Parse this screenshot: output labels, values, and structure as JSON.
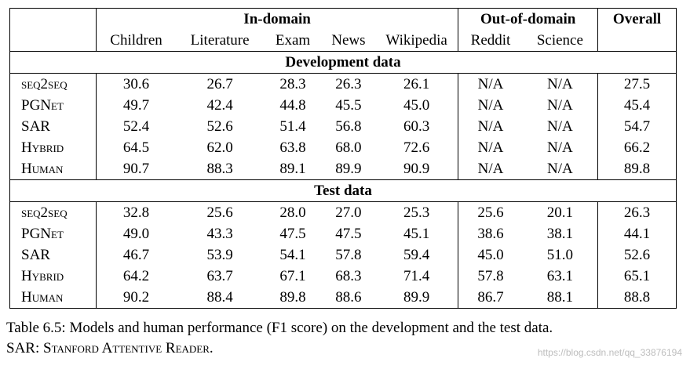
{
  "table": {
    "group_headers": {
      "in_domain": "In-domain",
      "out_of_domain": "Out-of-domain",
      "overall": "Overall"
    },
    "columns": [
      "Children",
      "Literature",
      "Exam",
      "News",
      "Wikipedia",
      "Reddit",
      "Science"
    ],
    "sections": [
      {
        "title": "Development data",
        "rows": [
          {
            "model": "seq2seq",
            "values": [
              "30.6",
              "26.7",
              "28.3",
              "26.3",
              "26.1",
              "N/A",
              "N/A",
              "27.5"
            ]
          },
          {
            "model": "PGNet",
            "values": [
              "49.7",
              "42.4",
              "44.8",
              "45.5",
              "45.0",
              "N/A",
              "N/A",
              "45.4"
            ]
          },
          {
            "model": "SAR",
            "values": [
              "52.4",
              "52.6",
              "51.4",
              "56.8",
              "60.3",
              "N/A",
              "N/A",
              "54.7"
            ]
          },
          {
            "model": "Hybrid",
            "values": [
              "64.5",
              "62.0",
              "63.8",
              "68.0",
              "72.6",
              "N/A",
              "N/A",
              "66.2"
            ]
          },
          {
            "model": "Human",
            "values": [
              "90.7",
              "88.3",
              "89.1",
              "89.9",
              "90.9",
              "N/A",
              "N/A",
              "89.8"
            ]
          }
        ]
      },
      {
        "title": "Test data",
        "rows": [
          {
            "model": "seq2seq",
            "values": [
              "32.8",
              "25.6",
              "28.0",
              "27.0",
              "25.3",
              "25.6",
              "20.1",
              "26.3"
            ]
          },
          {
            "model": "PGNet",
            "values": [
              "49.0",
              "43.3",
              "47.5",
              "47.5",
              "45.1",
              "38.6",
              "38.1",
              "44.1"
            ]
          },
          {
            "model": "SAR",
            "values": [
              "46.7",
              "53.9",
              "54.1",
              "57.8",
              "59.4",
              "45.0",
              "51.0",
              "52.6"
            ]
          },
          {
            "model": "Hybrid",
            "values": [
              "64.2",
              "63.7",
              "67.1",
              "68.3",
              "71.4",
              "57.8",
              "63.1",
              "65.1"
            ]
          },
          {
            "model": "Human",
            "values": [
              "90.2",
              "88.4",
              "89.8",
              "88.6",
              "89.9",
              "86.7",
              "88.1",
              "88.8"
            ]
          }
        ]
      }
    ]
  },
  "caption": {
    "line1": "Table 6.5: Models and human performance (F1 score) on the development and the test data.",
    "line2_abbr": "SAR: ",
    "line2_expansion": "Stanford Attentive Reader."
  },
  "watermark": "https://blog.csdn.net/qq_33876194"
}
